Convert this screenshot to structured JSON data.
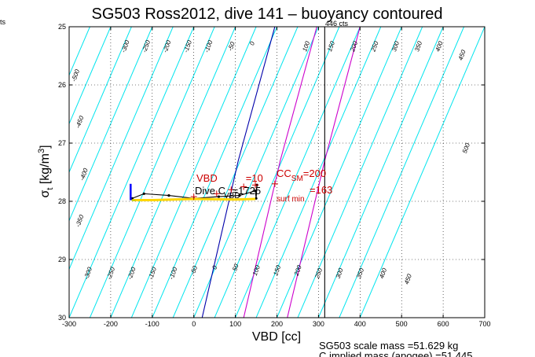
{
  "chart_data": {
    "type": "line",
    "title": "SG503 Ross2012, dive 141 – buoyancy contoured",
    "xlabel": "VBD [cc]",
    "ylabel_main": "σ",
    "ylabel_sub": "t",
    "ylabel_units": " [kg/m",
    "ylabel_sup": "3",
    "ylabel_close": "]",
    "xlim": [
      -300,
      700
    ],
    "ylim": [
      25,
      30
    ],
    "y_reversed": true,
    "grid": true,
    "x_ticks": [
      -300,
      -200,
      -100,
      0,
      100,
      200,
      300,
      400,
      500,
      600,
      700
    ],
    "y_ticks": [
      25,
      26,
      27,
      28,
      29,
      30
    ],
    "contour_lines": {
      "color": "#00e5ee",
      "slope_cc_per_sigma": 60,
      "reference_sigma": 25,
      "levels_at_reference": [
        -450,
        -400,
        -350,
        -300,
        -250,
        -200,
        -150,
        -100,
        -50,
        0,
        50,
        100,
        150,
        200,
        250,
        300,
        350,
        400,
        450,
        500,
        550,
        600,
        650,
        700
      ],
      "labels": [
        {
          "text": "-500",
          "x": -280,
          "y": 25.85
        },
        {
          "text": "-450",
          "x": -270,
          "y": 26.65
        },
        {
          "text": "-400",
          "x": -260,
          "y": 27.55
        },
        {
          "text": "-350",
          "x": -270,
          "y": 28.35
        },
        {
          "text": "-300",
          "x": -250,
          "y": 29.25
        },
        {
          "text": "-250",
          "x": -195,
          "y": 29.25
        },
        {
          "text": "-200",
          "x": -145,
          "y": 29.25
        },
        {
          "text": "-150",
          "x": -95,
          "y": 29.25
        },
        {
          "text": "-100",
          "x": -45,
          "y": 29.25
        },
        {
          "text": "-50",
          "x": 5,
          "y": 29.2
        },
        {
          "text": "0",
          "x": 55,
          "y": 29.15
        },
        {
          "text": "50",
          "x": 105,
          "y": 29.15
        },
        {
          "text": "100",
          "x": 155,
          "y": 29.2
        },
        {
          "text": "150",
          "x": 205,
          "y": 29.2
        },
        {
          "text": "200",
          "x": 255,
          "y": 29.2
        },
        {
          "text": "250",
          "x": 305,
          "y": 29.25
        },
        {
          "text": "300",
          "x": 355,
          "y": 29.25
        },
        {
          "text": "350",
          "x": 405,
          "y": 29.25
        },
        {
          "text": "400",
          "x": 460,
          "y": 29.25
        },
        {
          "text": "450",
          "x": 520,
          "y": 29.35
        },
        {
          "text": "500",
          "x": 660,
          "y": 27.1
        },
        {
          "text": "-300",
          "x": -160,
          "y": 25.35
        },
        {
          "text": "-250",
          "x": -110,
          "y": 25.35
        },
        {
          "text": "-200",
          "x": -60,
          "y": 25.35
        },
        {
          "text": "-150",
          "x": -10,
          "y": 25.35
        },
        {
          "text": "-100",
          "x": 40,
          "y": 25.35
        },
        {
          "text": "-50",
          "x": 95,
          "y": 25.35
        },
        {
          "text": "0",
          "x": 145,
          "y": 25.3
        },
        {
          "text": "100",
          "x": 275,
          "y": 25.35
        },
        {
          "text": "150",
          "x": 335,
          "y": 25.35
        },
        {
          "text": "200",
          "x": 390,
          "y": 25.35
        },
        {
          "text": "250",
          "x": 440,
          "y": 25.35
        },
        {
          "text": "300",
          "x": 490,
          "y": 25.35
        },
        {
          "text": "350",
          "x": 545,
          "y": 25.35
        },
        {
          "text": "400",
          "x": 595,
          "y": 25.35
        },
        {
          "text": "450",
          "x": 650,
          "y": 25.5
        }
      ]
    },
    "series": [
      {
        "name": "",
        "color": "#0000aa",
        "points": [
          [
            20,
            30
          ],
          [
            107,
            27.3
          ],
          [
            195,
            25
          ]
        ]
      },
      {
        "name": "",
        "color": "#cc00cc",
        "points": [
          [
            120,
            30
          ],
          [
            208,
            27.3
          ],
          [
            296,
            25
          ]
        ]
      },
      {
        "name": "",
        "color": "#cc00cc",
        "points": [
          [
            225,
            30
          ],
          [
            315,
            27.3
          ],
          [
            400,
            25
          ]
        ]
      },
      {
        "name": "",
        "color": "#000000",
        "points": [
          [
            315,
            25
          ],
          [
            315,
            30
          ]
        ]
      },
      {
        "name": "",
        "color": "#000000",
        "points": [
          [
            -148,
            27.95
          ],
          [
            -120,
            27.87
          ],
          [
            -60,
            27.9
          ],
          [
            0,
            27.95
          ],
          [
            60,
            27.92
          ],
          [
            110,
            27.9
          ],
          [
            148,
            27.82
          ],
          [
            150,
            27.95
          ],
          [
            152,
            27.72
          ]
        ],
        "markers": true
      },
      {
        "name": "",
        "color": "#ffd700",
        "points": [
          [
            -148,
            27.98
          ],
          [
            -100,
            27.98
          ],
          [
            0,
            27.96
          ],
          [
            100,
            27.97
          ],
          [
            148,
            27.96
          ]
        ]
      },
      {
        "name": "",
        "color": "#aacc00",
        "points": [
          [
            -150,
            27.98
          ],
          [
            -140,
            27.99
          ]
        ]
      },
      {
        "name": "",
        "color": "#0000ff",
        "points": [
          [
            -152,
            27.7
          ],
          [
            -152,
            27.98
          ]
        ]
      }
    ],
    "red_markers": [
      [
        0,
        27.92
      ],
      [
        55,
        27.87
      ],
      [
        90,
        27.8
      ],
      [
        120,
        27.75
      ],
      [
        148,
        27.72
      ],
      [
        195,
        27.7
      ]
    ],
    "annotations": {
      "vbd_label": "VBD",
      "vbd_value": "=10",
      "ccsm_label": "CC",
      "ccsm_sub": "SM",
      "ccsm_value": "=200",
      "surfmin_value": "=163",
      "surfmin_sub": "surf min",
      "dive_label": "Dive C",
      "dive_sub": "VBD",
      "dive_value": "=1725",
      "top_right": "446 cts",
      "left_cut": "ts"
    },
    "footer": {
      "line1": "SG503 scale mass =51.629 kg",
      "line2": "C     implied mass (apogee) =51.445"
    }
  }
}
